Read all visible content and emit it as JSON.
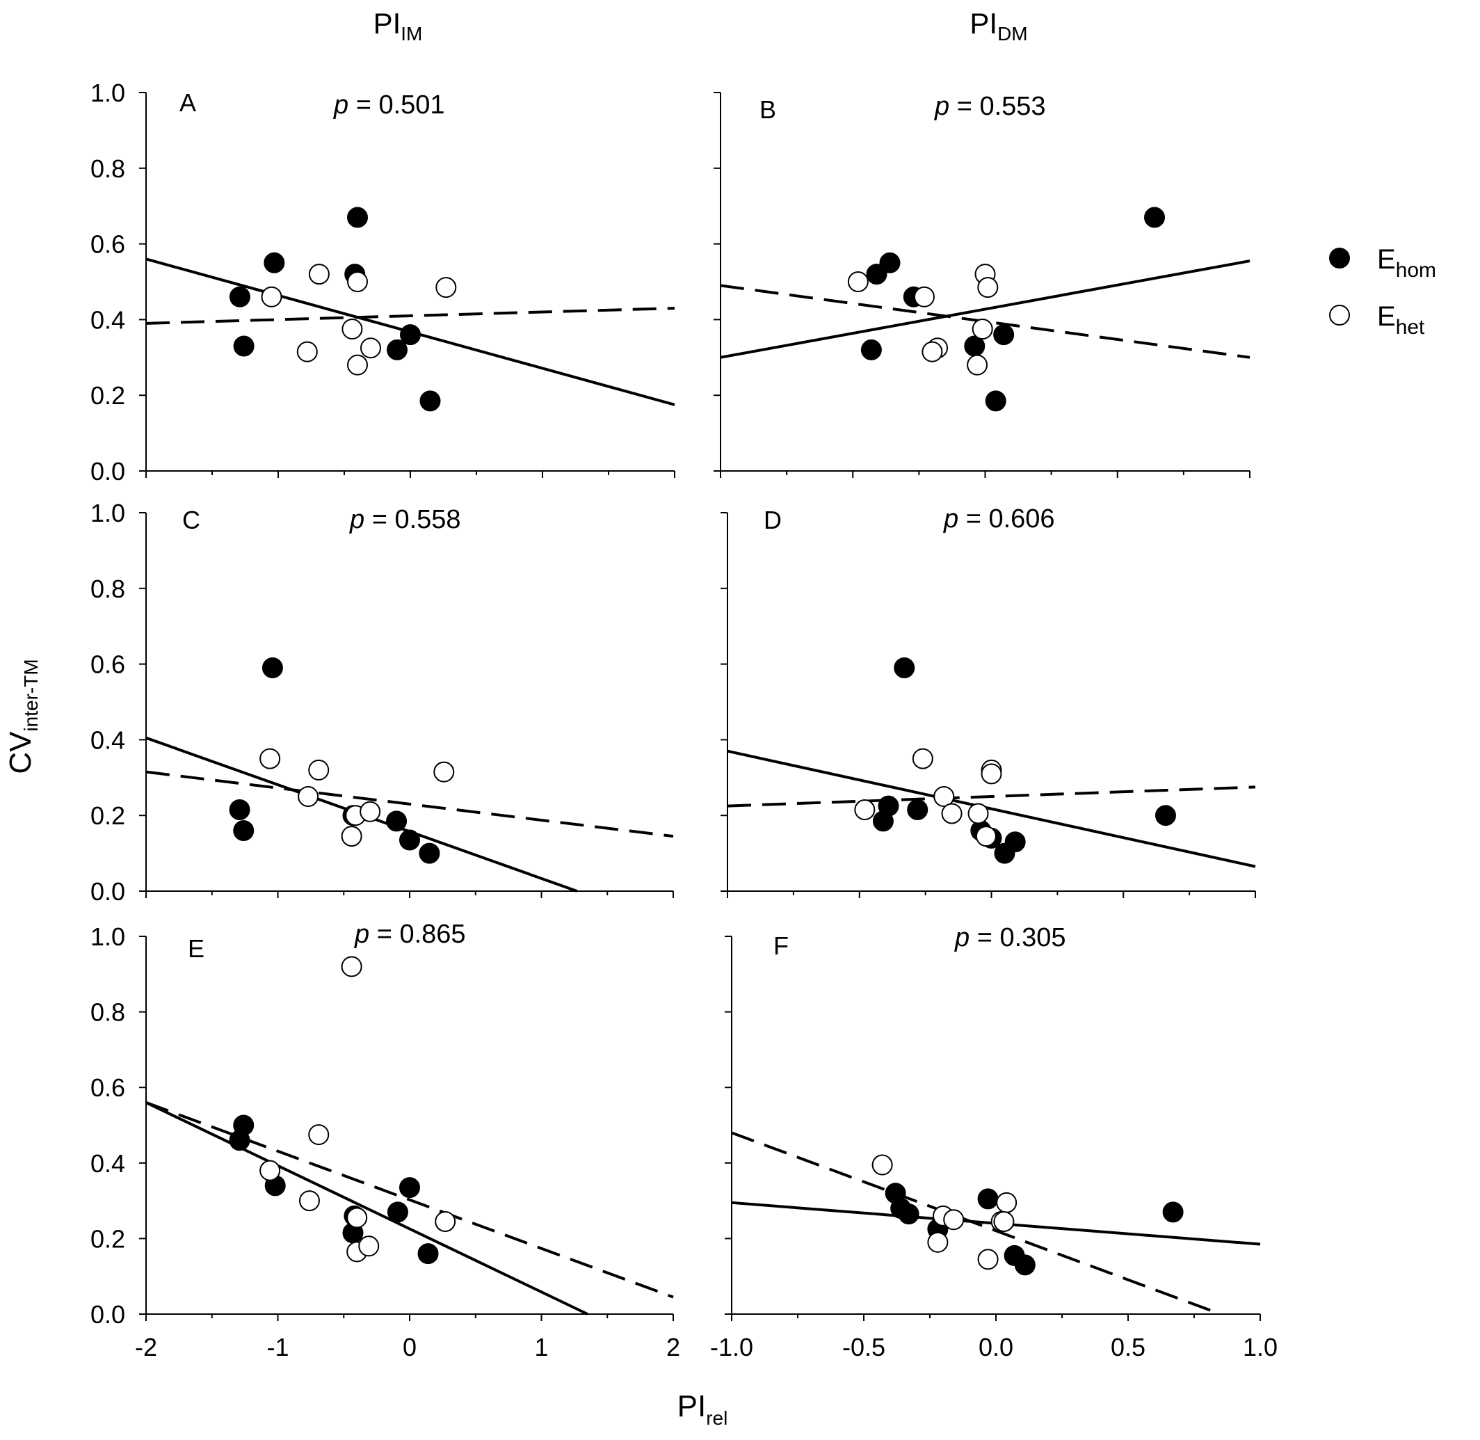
{
  "figure": {
    "col_headers": [
      {
        "main": "PI",
        "sub": "IM"
      },
      {
        "main": "PI",
        "sub": "DM"
      }
    ],
    "ylabel": {
      "main": "CV",
      "sub": "inter-TM"
    },
    "xlabel": {
      "main": "PI",
      "sub": "rel"
    },
    "legend": [
      {
        "main": "E",
        "sub": "hom",
        "marker": "filled"
      },
      {
        "main": "E",
        "sub": "het",
        "marker": "open"
      }
    ]
  },
  "chart_data": [
    {
      "type": "scatter",
      "letter": "A",
      "p_label": "p",
      "p_value": "= 0.501",
      "xlim": [
        -2,
        2
      ],
      "ylim": [
        0,
        1
      ],
      "xticks": [
        -2,
        -1,
        0,
        1,
        2
      ],
      "yticks": [
        "0.0",
        "0.2",
        "0.4",
        "0.6",
        "0.8",
        "1.0"
      ],
      "show_xticks": false,
      "filled": [
        [
          -1.29,
          0.46
        ],
        [
          -1.26,
          0.33
        ],
        [
          -1.03,
          0.55
        ],
        [
          -0.4,
          0.67
        ],
        [
          -0.42,
          0.52
        ],
        [
          0.0,
          0.36
        ],
        [
          -0.1,
          0.32
        ],
        [
          0.15,
          0.185
        ]
      ],
      "open": [
        [
          -1.05,
          0.46
        ],
        [
          -0.78,
          0.315
        ],
        [
          -0.69,
          0.52
        ],
        [
          -0.4,
          0.5
        ],
        [
          -0.44,
          0.375
        ],
        [
          -0.4,
          0.28
        ],
        [
          -0.3,
          0.325
        ],
        [
          0.27,
          0.485
        ]
      ],
      "fit_filled": [
        [
          -2,
          0.56
        ],
        [
          2,
          0.175
        ]
      ],
      "fit_open": [
        [
          -2,
          0.39
        ],
        [
          2,
          0.43
        ]
      ]
    },
    {
      "type": "scatter",
      "letter": "B",
      "p_label": "p",
      "p_value": "= 0.553",
      "xlim": [
        -1,
        1
      ],
      "ylim": [
        0,
        1
      ],
      "xticks": [
        "-1.0",
        "-0.5",
        "0.0",
        "0.5",
        "1.0"
      ],
      "yticks": [
        "0.0",
        "0.2",
        "0.4",
        "0.6",
        "0.8",
        "1.0"
      ],
      "show_xticks": false,
      "filled": [
        [
          -0.41,
          0.52
        ],
        [
          -0.36,
          0.55
        ],
        [
          -0.27,
          0.46
        ],
        [
          -0.04,
          0.33
        ],
        [
          0.07,
          0.36
        ],
        [
          0.04,
          0.185
        ],
        [
          -0.43,
          0.32
        ],
        [
          0.64,
          0.67
        ]
      ],
      "open": [
        [
          -0.48,
          0.5
        ],
        [
          -0.23,
          0.46
        ],
        [
          -0.18,
          0.325
        ],
        [
          -0.2,
          0.315
        ],
        [
          0.0,
          0.52
        ],
        [
          0.01,
          0.485
        ],
        [
          -0.01,
          0.375
        ],
        [
          -0.03,
          0.28
        ]
      ],
      "fit_filled": [
        [
          -1,
          0.3
        ],
        [
          1,
          0.555
        ]
      ],
      "fit_open": [
        [
          -1,
          0.49
        ],
        [
          1,
          0.3
        ]
      ]
    },
    {
      "type": "scatter",
      "letter": "C",
      "p_label": "p",
      "p_value": "= 0.558",
      "xlim": [
        -2,
        2
      ],
      "ylim": [
        0,
        1
      ],
      "xticks": [
        -2,
        -1,
        0,
        1,
        2
      ],
      "yticks": [
        "0.0",
        "0.2",
        "0.4",
        "0.6",
        "0.8",
        "1.0"
      ],
      "show_xticks": false,
      "filled": [
        [
          -1.29,
          0.215
        ],
        [
          -1.26,
          0.16
        ],
        [
          -1.04,
          0.59
        ],
        [
          -0.43,
          0.2
        ],
        [
          -0.1,
          0.185
        ],
        [
          0.0,
          0.135
        ],
        [
          0.15,
          0.1
        ]
      ],
      "open": [
        [
          -1.06,
          0.35
        ],
        [
          -0.77,
          0.25
        ],
        [
          -0.69,
          0.32
        ],
        [
          -0.44,
          0.145
        ],
        [
          -0.41,
          0.2
        ],
        [
          -0.3,
          0.21
        ],
        [
          0.26,
          0.315
        ]
      ],
      "fit_filled": [
        [
          -2,
          0.405
        ],
        [
          1.27,
          0.0
        ]
      ],
      "fit_open": [
        [
          -2,
          0.315
        ],
        [
          2,
          0.145
        ]
      ]
    },
    {
      "type": "scatter",
      "letter": "D",
      "p_label": "p",
      "p_value": "= 0.606",
      "xlim": [
        -1,
        1
      ],
      "ylim": [
        0,
        1
      ],
      "xticks": [
        "-1.0",
        "-0.5",
        "0.0",
        "0.5",
        "1.0"
      ],
      "yticks": [
        "0.0",
        "0.2",
        "0.4",
        "0.6",
        "0.8",
        "1.0"
      ],
      "show_xticks": false,
      "filled": [
        [
          -0.39,
          0.225
        ],
        [
          -0.41,
          0.185
        ],
        [
          -0.33,
          0.59
        ],
        [
          -0.28,
          0.215
        ],
        [
          -0.04,
          0.16
        ],
        [
          0.0,
          0.14
        ],
        [
          0.05,
          0.1
        ],
        [
          0.09,
          0.13
        ],
        [
          0.66,
          0.2
        ]
      ],
      "open": [
        [
          -0.48,
          0.215
        ],
        [
          -0.26,
          0.35
        ],
        [
          -0.18,
          0.25
        ],
        [
          -0.15,
          0.205
        ],
        [
          -0.05,
          0.205
        ],
        [
          0.0,
          0.32
        ],
        [
          0.0,
          0.31
        ],
        [
          -0.02,
          0.145
        ]
      ],
      "fit_filled": [
        [
          -1,
          0.37
        ],
        [
          1,
          0.065
        ]
      ],
      "fit_open": [
        [
          -1,
          0.225
        ],
        [
          1,
          0.275
        ]
      ]
    },
    {
      "type": "scatter",
      "letter": "E",
      "p_label": "p",
      "p_value": "= 0.865",
      "xlim": [
        -2,
        2
      ],
      "ylim": [
        0,
        1
      ],
      "xticks": [
        "-2",
        "-1",
        "0",
        "1",
        "2"
      ],
      "yticks": [
        "0.0",
        "0.2",
        "0.4",
        "0.6",
        "0.8",
        "1.0"
      ],
      "show_xticks": true,
      "filled": [
        [
          -1.29,
          0.46
        ],
        [
          -1.26,
          0.5
        ],
        [
          -1.02,
          0.34
        ],
        [
          -0.43,
          0.215
        ],
        [
          -0.42,
          0.26
        ],
        [
          -0.09,
          0.27
        ],
        [
          0.0,
          0.335
        ],
        [
          0.14,
          0.16
        ]
      ],
      "open": [
        [
          -1.06,
          0.38
        ],
        [
          -0.76,
          0.3
        ],
        [
          -0.69,
          0.475
        ],
        [
          -0.44,
          0.92
        ],
        [
          -0.4,
          0.255
        ],
        [
          -0.4,
          0.165
        ],
        [
          -0.31,
          0.18
        ],
        [
          0.27,
          0.245
        ]
      ],
      "fit_filled": [
        [
          -2,
          0.56
        ],
        [
          1.35,
          0.0
        ]
      ],
      "fit_open": [
        [
          -2,
          0.56
        ],
        [
          2,
          0.045
        ]
      ]
    },
    {
      "type": "scatter",
      "letter": "F",
      "p_label": "p",
      "p_value": "= 0.305",
      "xlim": [
        -1,
        1
      ],
      "ylim": [
        0,
        1
      ],
      "xticks": [
        "-1.0",
        "-0.5",
        "0.0",
        "0.5",
        "1.0"
      ],
      "yticks": [
        "0.0",
        "0.2",
        "0.4",
        "0.6",
        "0.8",
        "1.0"
      ],
      "show_xticks": true,
      "filled": [
        [
          -0.38,
          0.32
        ],
        [
          -0.36,
          0.28
        ],
        [
          -0.33,
          0.265
        ],
        [
          -0.22,
          0.225
        ],
        [
          -0.03,
          0.305
        ],
        [
          0.07,
          0.155
        ],
        [
          0.11,
          0.13
        ],
        [
          0.67,
          0.27
        ]
      ],
      "open": [
        [
          -0.43,
          0.395
        ],
        [
          -0.2,
          0.26
        ],
        [
          -0.22,
          0.19
        ],
        [
          -0.16,
          0.25
        ],
        [
          0.02,
          0.245
        ],
        [
          0.04,
          0.295
        ],
        [
          -0.03,
          0.145
        ],
        [
          0.03,
          0.245
        ]
      ],
      "fit_filled": [
        [
          -1,
          0.295
        ],
        [
          1,
          0.185
        ]
      ],
      "fit_open": [
        [
          -1,
          0.48
        ],
        [
          0.85,
          0.0
        ]
      ]
    }
  ]
}
